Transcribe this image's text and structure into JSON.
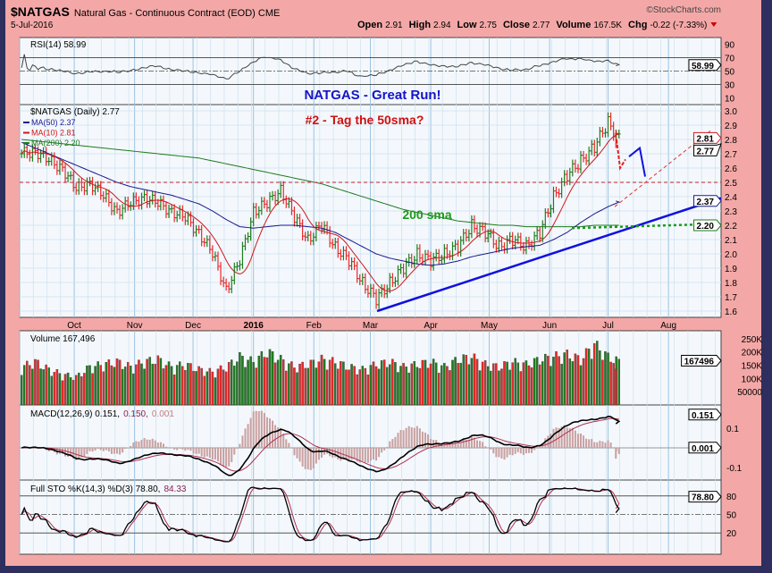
{
  "header": {
    "symbol": "$NATGAS",
    "name": "Natural Gas - Continuous Contract (EOD)",
    "exchange": "CME",
    "date": "5-Jul-2016",
    "brand": "©StockCharts.com",
    "quote": [
      {
        "k": "Open",
        "v": "2.91"
      },
      {
        "k": "High",
        "v": "2.94"
      },
      {
        "k": "Low",
        "v": "2.75"
      },
      {
        "k": "Close",
        "v": "2.77"
      },
      {
        "k": "Volume",
        "v": "167.5K"
      },
      {
        "k": "Chg",
        "v": "-0.22 (-7.33%)"
      }
    ]
  },
  "colors": {
    "up": "#1e7d1e",
    "down": "#e8292a",
    "ma50": "#1a1a8c",
    "ma10": "#d0161b",
    "ma200": "#1f7a1f",
    "trend": "#1010e0",
    "background": "#f3a8a7",
    "panel": "#f4f8fc"
  },
  "annotations": {
    "title": "NATGAS - Great Run!",
    "subtitle": "#2 - Tag the 50sma?",
    "sma_label": "200 sma"
  },
  "chart_data": {
    "type": "ohlc",
    "x_ticks": [
      {
        "d": "2015-10-01",
        "l": "Oct"
      },
      {
        "d": "2015-11-01",
        "l": "Nov"
      },
      {
        "d": "2015-12-01",
        "l": "Dec"
      },
      {
        "d": "2016-01-01",
        "l": "2016"
      },
      {
        "d": "2016-02-01",
        "l": "Feb"
      },
      {
        "d": "2016-03-01",
        "l": "Mar"
      },
      {
        "d": "2016-04-01",
        "l": "Apr"
      },
      {
        "d": "2016-05-01",
        "l": "May"
      },
      {
        "d": "2016-06-01",
        "l": "Jun"
      },
      {
        "d": "2016-07-01",
        "l": "Jul"
      },
      {
        "d": "2016-08-01",
        "l": "Aug"
      }
    ],
    "x_range": [
      "2015-09-03",
      "2016-08-28"
    ],
    "price": {
      "label": "$NATGAS (Daily) 2.77",
      "ylim": [
        1.6,
        3.0
      ],
      "ticks": [
        1.6,
        1.7,
        1.8,
        1.9,
        2.0,
        2.1,
        2.2,
        2.3,
        2.4,
        2.5,
        2.6,
        2.7,
        2.8,
        2.9,
        3.0
      ],
      "weekly_dates_start": "2015-09-04",
      "weekly_close": [
        2.7,
        2.72,
        2.65,
        2.6,
        2.45,
        2.5,
        2.4,
        2.3,
        2.35,
        2.4,
        2.35,
        2.3,
        2.25,
        2.15,
        2.0,
        1.75,
        1.95,
        2.3,
        2.35,
        2.45,
        2.25,
        2.1,
        2.2,
        2.05,
        1.95,
        1.8,
        1.68,
        1.8,
        1.9,
        2.0,
        1.95,
        2.0,
        2.05,
        2.2,
        2.15,
        2.05,
        2.1,
        2.05,
        2.15,
        2.4,
        2.55,
        2.65,
        2.75,
        2.92,
        2.77
      ],
      "ma50_weekly": [
        2.78,
        2.74,
        2.7,
        2.66,
        2.62,
        2.58,
        2.54,
        2.5,
        2.47,
        2.45,
        2.43,
        2.41,
        2.38,
        2.35,
        2.3,
        2.24,
        2.19,
        2.18,
        2.19,
        2.2,
        2.2,
        2.19,
        2.18,
        2.15,
        2.1,
        2.05,
        2.0,
        1.97,
        1.95,
        1.93,
        1.92,
        1.93,
        1.95,
        1.98,
        2.0,
        2.02,
        2.04,
        2.05,
        2.06,
        2.1,
        2.15,
        2.22,
        2.28,
        2.33,
        2.37
      ],
      "ma200_weekly": [
        2.8,
        2.79,
        2.78,
        2.77,
        2.76,
        2.75,
        2.74,
        2.73,
        2.72,
        2.71,
        2.7,
        2.69,
        2.68,
        2.67,
        2.65,
        2.63,
        2.61,
        2.59,
        2.57,
        2.55,
        2.53,
        2.51,
        2.49,
        2.46,
        2.43,
        2.4,
        2.37,
        2.34,
        2.31,
        2.29,
        2.27,
        2.25,
        2.23,
        2.22,
        2.21,
        2.2,
        2.2,
        2.19,
        2.19,
        2.19,
        2.19,
        2.19,
        2.2,
        2.2,
        2.2
      ],
      "legend": [
        {
          "l": "MA(50) 2.37",
          "c": "#1a1a8c"
        },
        {
          "l": "MA(10) 2.81",
          "c": "#d0161b"
        },
        {
          "l": "MA(200) 2.20",
          "c": "#1f7a1f"
        }
      ],
      "tags": [
        {
          "v": 2.81,
          "l": "2.81",
          "c": "#d0161b"
        },
        {
          "v": 2.77,
          "l": "2.77",
          "c": "#000"
        },
        {
          "v": 2.37,
          "l": "2.37",
          "c": "#1a1a8c"
        },
        {
          "v": 2.2,
          "l": "2.20",
          "c": "#1f7a1f"
        }
      ]
    },
    "rsi": {
      "label": "RSI(14) 58.99",
      "ticks": [
        10,
        30,
        50,
        70,
        90
      ],
      "value": "58.99",
      "ylim": [
        0,
        100
      ]
    },
    "volume": {
      "label": "Volume 167,496",
      "ticks": [
        "250K",
        "200K",
        "150K",
        "100K",
        "50000"
      ],
      "tick_values": [
        250,
        200,
        150,
        100,
        50
      ],
      "value": "167496",
      "ylim_k": [
        0,
        280
      ],
      "weekly_k": [
        150,
        170,
        140,
        120,
        110,
        150,
        160,
        170,
        150,
        170,
        180,
        150,
        160,
        140,
        130,
        150,
        190,
        170,
        210,
        180,
        150,
        160,
        180,
        170,
        150,
        140,
        160,
        170,
        150,
        160,
        170,
        150,
        180,
        190,
        160,
        150,
        170,
        160,
        180,
        190,
        200,
        180,
        240,
        190,
        167
      ]
    },
    "macd": {
      "label": "MACD(12,26,9) 0.151,",
      "signal": "0.150,",
      "hist": "0.001",
      "ticks": [
        0.1,
        -0.1
      ],
      "tags": [
        "0.151",
        "0.001"
      ]
    },
    "sto": {
      "label": "Full STO %K(14,3) %D(3) 78.80,",
      "d": "84.33",
      "ticks": [
        20,
        50,
        80
      ],
      "tag": "78.80"
    }
  }
}
